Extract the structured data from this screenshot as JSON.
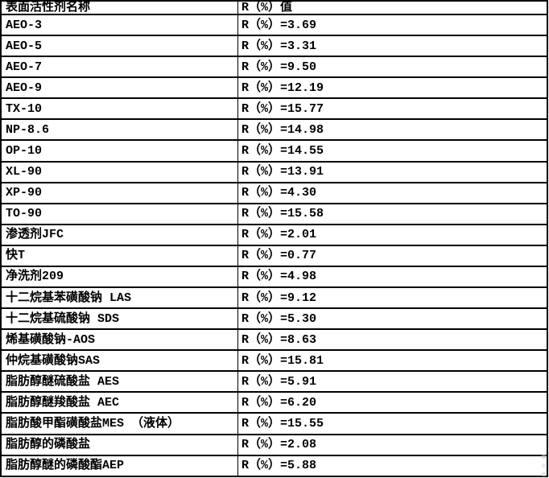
{
  "table": {
    "columns": [
      {
        "key": "name",
        "label": "表面活性剂名称"
      },
      {
        "key": "value",
        "label": "R（%）值"
      }
    ],
    "rows": [
      {
        "name": "AEO-3",
        "value": "R（%）=3.69"
      },
      {
        "name": "AEO-5",
        "value": "R（%）=3.31"
      },
      {
        "name": "AEO-7",
        "value": "R（%）=9.50"
      },
      {
        "name": "AEO-9",
        "value": "R（%）=12.19"
      },
      {
        "name": "TX-10",
        "value": "R（%）=15.77"
      },
      {
        "name": "NP-8.6",
        "value": "R（%）=14.98"
      },
      {
        "name": "OP-10",
        "value": "R（%）=14.55"
      },
      {
        "name": "XL-90",
        "value": "R（%）=13.91"
      },
      {
        "name": "XP-90",
        "value": "R（%）=4.30"
      },
      {
        "name": "TO-90",
        "value": "R（%）=15.58"
      },
      {
        "name": "渗透剂JFC",
        "value": "R（%）=2.01"
      },
      {
        "name": "快T",
        "value": "R（%）=0.77"
      },
      {
        "name": "净洗剂209",
        "value": "R（%）=4.98"
      },
      {
        "name": "十二烷基苯磺酸钠 LAS",
        "value": "R（%）=9.12"
      },
      {
        "name": "十二烷基硫酸钠 SDS",
        "value": "R（%）=5.30"
      },
      {
        "name": "烯基磺酸钠-AOS",
        "value": "R（%）=8.63"
      },
      {
        "name": "仲烷基磺酸钠SAS",
        "value": "R（%）=15.81"
      },
      {
        "name": "脂肪醇醚硫酸盐 AES",
        "value": "R（%）=5.91"
      },
      {
        "name": "脂肪醇醚羧酸盐 AEC",
        "value": "R（%）=6.20"
      },
      {
        "name": "脂肪酸甲酯磺酸盐MES （液体）",
        "value": "R（%）=15.55"
      },
      {
        "name": "脂肪醇的磷酸盐",
        "value": "R（%）=2.08"
      },
      {
        "name": "脂肪醇醚的磷酸酯AEP",
        "value": "R（%）=5.88"
      }
    ]
  },
  "colors": {
    "border": "#000000",
    "background": "#ffffff",
    "text": "#000000"
  }
}
